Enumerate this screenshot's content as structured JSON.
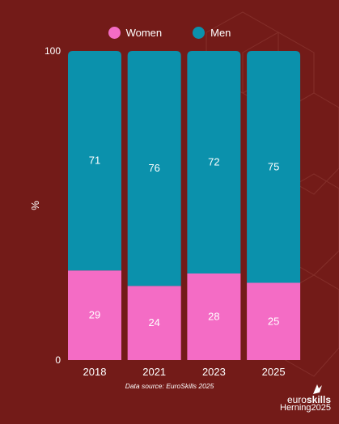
{
  "legend": {
    "women": "Women",
    "men": "Men"
  },
  "source": "Data source: EuroSkills 2025",
  "logo": {
    "line1_light": "euro",
    "line1_bold": "skills",
    "line2": "Herning2025"
  },
  "colors": {
    "background": "#731b18",
    "women": "#f46cc5",
    "men": "#0b91ac",
    "text": "#ffffff"
  },
  "chart_data": {
    "type": "bar",
    "stacked": true,
    "categories": [
      "2018",
      "2021",
      "2023",
      "2025"
    ],
    "series": [
      {
        "name": "Women",
        "values": [
          29,
          24,
          28,
          25
        ]
      },
      {
        "name": "Men",
        "values": [
          71,
          76,
          72,
          75
        ]
      }
    ],
    "ylabel": "%",
    "ylim": [
      0,
      100
    ],
    "yticks": [
      0,
      100
    ],
    "legend": "top-center",
    "grid": false
  }
}
